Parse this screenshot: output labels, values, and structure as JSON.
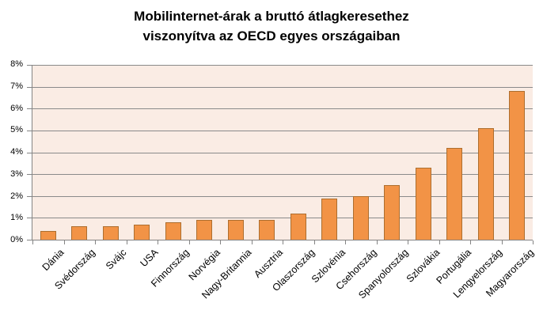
{
  "title": {
    "line1": "Mobilinternet-árak a bruttó átlagkeresethez",
    "line2": "viszonyítva az OECD egyes országaiban"
  },
  "chart_data": {
    "type": "bar",
    "title": "Mobilinternet-árak a bruttó átlagkeresethez viszonyítva az OECD egyes országaiban",
    "categories": [
      "Dánia",
      "Svédország",
      "Svájc",
      "USA",
      "Finnország",
      "Norvégia",
      "Nagy-Britannia",
      "Ausztria",
      "Olaszország",
      "Szlovénia",
      "Csehország",
      "Spanyolország",
      "Szlovákia",
      "Portugália",
      "Lengyelország",
      "Magyarország"
    ],
    "values": [
      0.4,
      0.6,
      0.6,
      0.7,
      0.8,
      0.9,
      0.9,
      0.9,
      1.2,
      1.9,
      2.0,
      2.5,
      3.3,
      4.2,
      5.1,
      6.8
    ],
    "unit": "%",
    "xlabel": "",
    "ylabel": "",
    "ylim": [
      0,
      8
    ],
    "ytick_step": 1,
    "ytick_labels": [
      "0%",
      "1%",
      "2%",
      "3%",
      "4%",
      "5%",
      "6%",
      "7%",
      "8%"
    ],
    "grid": true,
    "legend": "none",
    "colors": {
      "bar_fill": "#F29346",
      "bar_border": "#AD6E2E",
      "plot_background": "#FAECE4",
      "gridline": "#8A8A8A",
      "axis": "#848484",
      "text": "#000000",
      "page_background": "#FFFFFF"
    }
  }
}
